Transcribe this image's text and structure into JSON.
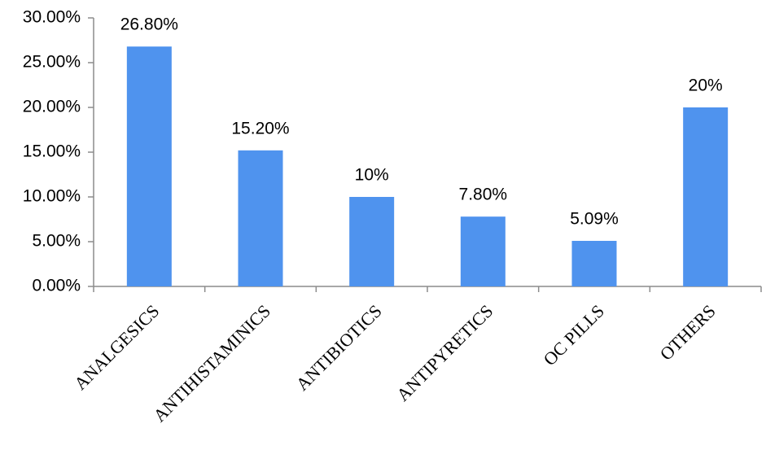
{
  "chart_data": {
    "type": "bar",
    "categories": [
      "ANALGESICS",
      "ANTIHISTAMINICS",
      "ANTIBIOTICS",
      "ANTIPYRETICS",
      "OC PILLS",
      "OTHERS"
    ],
    "values": [
      26.8,
      15.2,
      10,
      7.8,
      5.09,
      20
    ],
    "value_labels": [
      "26.80%",
      "15.20%",
      "10%",
      "7.80%",
      "5.09%",
      "20%"
    ],
    "color": "#4f93ee",
    "ylim": [
      0,
      30
    ],
    "yticks": [
      {
        "value": 0,
        "label": "0.00%"
      },
      {
        "value": 5,
        "label": "5.00%"
      },
      {
        "value": 10,
        "label": "10.00%"
      },
      {
        "value": 15,
        "label": "15.00%"
      },
      {
        "value": 20,
        "label": "20.00%"
      },
      {
        "value": 25,
        "label": "25.00%"
      },
      {
        "value": 30,
        "label": "30.00%"
      }
    ],
    "grid": false
  }
}
